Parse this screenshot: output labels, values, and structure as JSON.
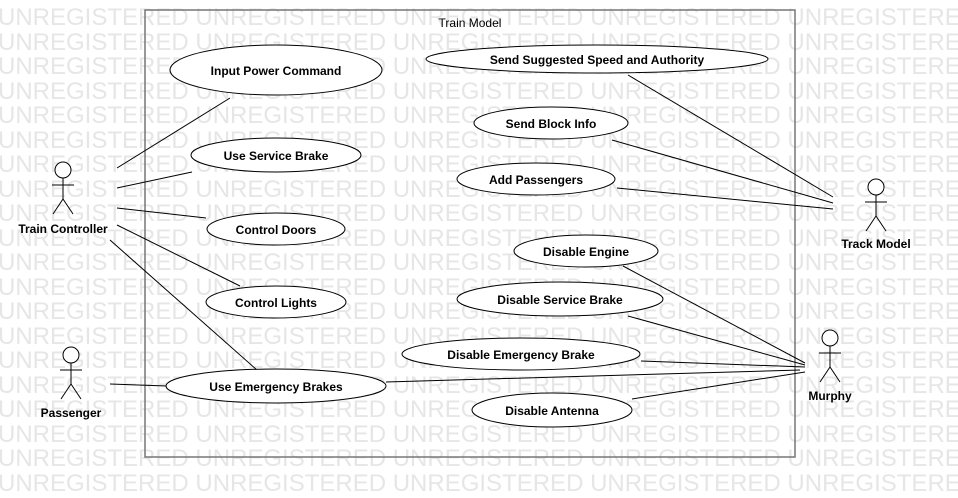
{
  "watermark": "UNREGISTERED",
  "system": {
    "title": "Train Model"
  },
  "actors": {
    "train_controller": "Train Controller",
    "passenger": "Passenger",
    "track_model": "Track Model",
    "murphy": "Murphy"
  },
  "use_cases": {
    "input_power_command": "Input Power Command",
    "use_service_brake": "Use Service Brake",
    "control_doors": "Control Doors",
    "control_lights": "Control Lights",
    "use_emergency_brakes": "Use Emergency Brakes",
    "send_suggested_speed": "Send Suggested Speed and Authority",
    "send_block_info": "Send Block Info",
    "add_passengers": "Add Passengers",
    "disable_engine": "Disable Engine",
    "disable_service_brake": "Disable Service Brake",
    "disable_emergency_brake": "Disable Emergency Brake",
    "disable_antenna": "Disable Antenna"
  }
}
